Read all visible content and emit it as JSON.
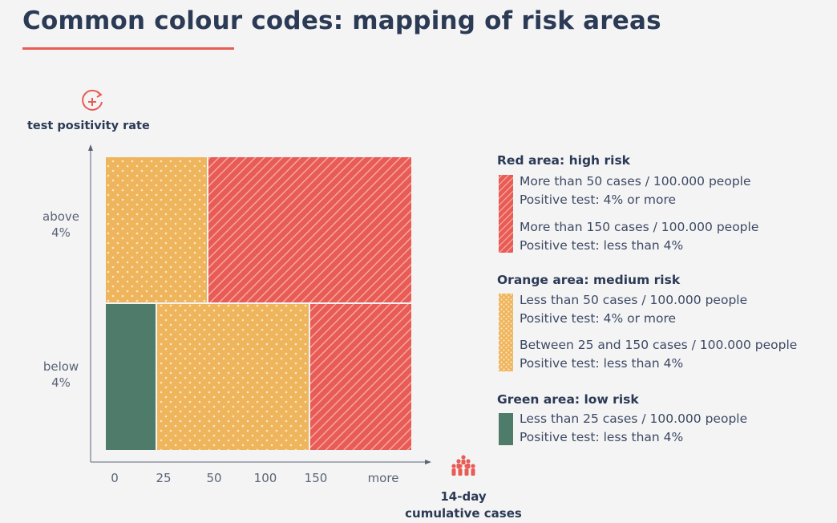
{
  "title": "Common colour codes: mapping of risk areas",
  "colors": {
    "red": "#e95b55",
    "orange": "#efb55c",
    "green": "#4f7b6b",
    "navy": "#2b3a55",
    "muted_text": "#5a6476"
  },
  "icons": {
    "y_axis": "test-positivity-icon",
    "x_axis": "people-group-icon"
  },
  "y_axis": {
    "label": "test positivity rate",
    "ticks": [
      {
        "line1": "above",
        "line2": "4%"
      },
      {
        "line1": "below",
        "line2": "4%"
      }
    ]
  },
  "x_axis": {
    "label_line1": "14-day",
    "label_line2": "cumulative cases",
    "ticks": [
      "0",
      "25",
      "50",
      "100",
      "150",
      "more"
    ]
  },
  "regions": [
    {
      "band": "above 4%",
      "from": "0",
      "to": "50",
      "risk": "orange"
    },
    {
      "band": "above 4%",
      "from": "50",
      "to": "more",
      "risk": "red"
    },
    {
      "band": "below 4%",
      "from": "0",
      "to": "25",
      "risk": "green"
    },
    {
      "band": "below 4%",
      "from": "25",
      "to": "150",
      "risk": "orange"
    },
    {
      "band": "below 4%",
      "from": "150",
      "to": "more",
      "risk": "red"
    }
  ],
  "legend": {
    "red": {
      "heading": "Red area: high risk",
      "lines": [
        "More than 50 cases / 100.000 people",
        "Positive test: 4% or more",
        "More than 150 cases / 100.000 people",
        "Positive test: less than 4%"
      ]
    },
    "orange": {
      "heading": "Orange area: medium risk",
      "lines": [
        "Less than 50 cases / 100.000 people",
        "Positive test: 4% or more",
        "Between 25 and 150 cases / 100.000 people",
        "Positive test: less than 4%"
      ]
    },
    "green": {
      "heading": "Green area: low risk",
      "lines": [
        "Less than 25 cases / 100.000 people",
        "Positive test: less than 4%"
      ]
    }
  }
}
